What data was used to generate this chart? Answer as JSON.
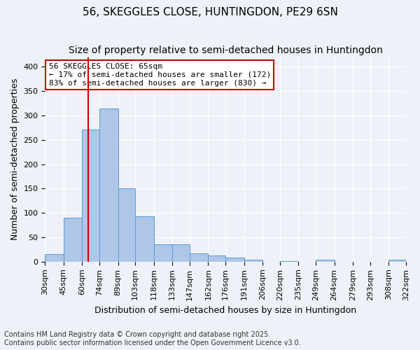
{
  "title": "56, SKEGGLES CLOSE, HUNTINGDON, PE29 6SN",
  "subtitle": "Size of property relative to semi-detached houses in Huntingdon",
  "xlabel": "Distribution of semi-detached houses by size in Huntingdon",
  "ylabel": "Number of semi-detached properties",
  "annotation_title": "56 SKEGGLES CLOSE: 65sqm",
  "annotation_line1": "← 17% of semi-detached houses are smaller (172)",
  "annotation_line2": "83% of semi-detached houses are larger (830) →",
  "footnote1": "Contains HM Land Registry data © Crown copyright and database right 2025.",
  "footnote2": "Contains public sector information licensed under the Open Government Licence v3.0.",
  "property_size": 65,
  "bin_edges": [
    30,
    45,
    60,
    74,
    89,
    103,
    118,
    133,
    147,
    162,
    176,
    191,
    206,
    220,
    235,
    249,
    264,
    279,
    293,
    308,
    322
  ],
  "bin_labels": [
    "30sqm",
    "45sqm",
    "60sqm",
    "74sqm",
    "89sqm",
    "103sqm",
    "118sqm",
    "133sqm",
    "147sqm",
    "162sqm",
    "176sqm",
    "191sqm",
    "206sqm",
    "220sqm",
    "235sqm",
    "249sqm",
    "264sqm",
    "279sqm",
    "293sqm",
    "308sqm",
    "322sqm"
  ],
  "bar_heights": [
    15,
    90,
    272,
    315,
    150,
    93,
    35,
    35,
    17,
    12,
    8,
    4,
    0,
    1,
    0,
    4,
    0,
    0,
    0,
    4
  ],
  "bar_color": "#aec6e8",
  "bar_edge_color": "#5b9bd5",
  "vline_color": "#cc0000",
  "vline_x": 65,
  "ylim": [
    0,
    420
  ],
  "yticks": [
    0,
    50,
    100,
    150,
    200,
    250,
    300,
    350,
    400
  ],
  "background_color": "#eef2f8",
  "plot_background": "#eef2f8",
  "grid_color": "#ffffff",
  "annotation_box_color": "#ffffff",
  "annotation_box_edge": "#cc0000",
  "title_fontsize": 11,
  "subtitle_fontsize": 10,
  "axis_label_fontsize": 9,
  "tick_fontsize": 8,
  "annotation_fontsize": 8,
  "footnote_fontsize": 7
}
